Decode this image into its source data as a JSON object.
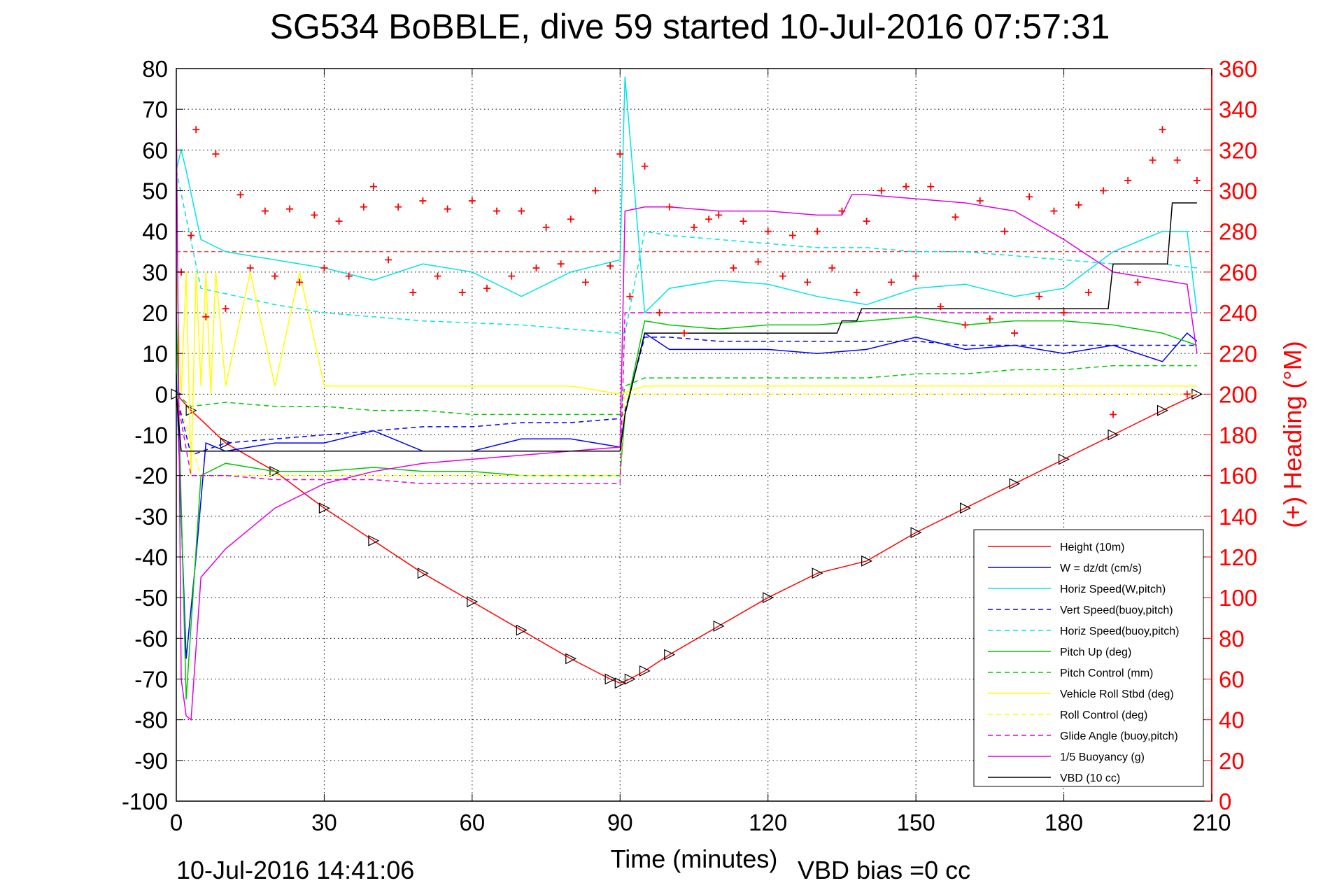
{
  "chart_data": {
    "type": "line",
    "title": "SG534 BoBBLE, dive 59 started 10-Jul-2016 07:57:31",
    "xlabel": "Time (minutes)",
    "ylabel_right": "(+) Heading (°M)",
    "footer_timestamp": "10-Jul-2016 14:41:06",
    "footer_note": "VBD bias =0 cc",
    "xlim": [
      0,
      210
    ],
    "ylim": [
      -100,
      80
    ],
    "ylim_right": [
      0,
      360
    ],
    "grid": true,
    "legend_position": "bottom-right",
    "x_ticks": [
      "0",
      "30",
      "60",
      "90",
      "120",
      "150",
      "180",
      "210"
    ],
    "y_ticks": [
      "80",
      "70",
      "60",
      "50",
      "40",
      "30",
      "20",
      "10",
      "0",
      "-10",
      "-20",
      "-30",
      "-40",
      "-50",
      "-60",
      "-70",
      "-80",
      "-90",
      "-100"
    ],
    "y_ticks_right": [
      "360",
      "340",
      "320",
      "300",
      "280",
      "260",
      "240",
      "220",
      "200",
      "180",
      "160",
      "140",
      "120",
      "100",
      "80",
      "60",
      "40",
      "20",
      "0"
    ],
    "colors": {
      "right_axis": "#ff0000",
      "grid": "#000000"
    },
    "series": [
      {
        "name": "Height (10m)",
        "color": "#ff0000",
        "style": "solid",
        "marker": "triangle",
        "x": [
          0,
          3,
          10,
          20,
          30,
          40,
          50,
          60,
          70,
          80,
          88,
          90,
          92,
          95,
          100,
          110,
          120,
          130,
          140,
          150,
          160,
          170,
          180,
          190,
          200,
          207
        ],
        "y": [
          0,
          -4,
          -12,
          -19,
          -28,
          -36,
          -44,
          -51,
          -58,
          -65,
          -70,
          -71,
          -70,
          -68,
          -64,
          -57,
          -50,
          -44,
          -41,
          -34,
          -28,
          -22,
          -16,
          -10,
          -4,
          0
        ]
      },
      {
        "name": "W = dz/dt (cm/s)",
        "color": "#0000ff",
        "style": "solid",
        "x": [
          0,
          1,
          2,
          4,
          6,
          10,
          20,
          30,
          40,
          50,
          60,
          70,
          80,
          90,
          91,
          95,
          100,
          110,
          120,
          130,
          140,
          150,
          160,
          170,
          180,
          190,
          200,
          205,
          207
        ],
        "y": [
          5,
          -30,
          -65,
          -40,
          -12,
          -14,
          -12,
          -12,
          -9,
          -14,
          -14,
          -11,
          -11,
          -13,
          -5,
          15,
          11,
          11,
          11,
          10,
          11,
          14,
          11,
          12,
          10,
          12,
          8,
          15,
          13
        ]
      },
      {
        "name": "Horiz Speed(W,pitch)",
        "color": "#00e5e5",
        "style": "solid",
        "x": [
          0,
          1,
          2,
          5,
          10,
          20,
          30,
          40,
          50,
          60,
          70,
          80,
          90,
          91,
          95,
          100,
          110,
          120,
          130,
          140,
          150,
          160,
          170,
          180,
          190,
          200,
          205,
          207
        ],
        "y": [
          55,
          60,
          55,
          38,
          35,
          33,
          31,
          28,
          32,
          30,
          24,
          30,
          33,
          78,
          20,
          26,
          28,
          27,
          24,
          22,
          26,
          27,
          24,
          26,
          35,
          40,
          40,
          20
        ]
      },
      {
        "name": "Vert Speed(buoy,pitch)",
        "color": "#0000ff",
        "style": "dashed",
        "x": [
          0,
          3,
          10,
          20,
          30,
          40,
          50,
          60,
          70,
          80,
          90,
          91,
          95,
          100,
          110,
          120,
          130,
          140,
          150,
          160,
          170,
          180,
          190,
          200,
          207
        ],
        "y": [
          0,
          -15,
          -12,
          -11,
          -10,
          -9,
          -8,
          -8,
          -7,
          -7,
          -6,
          -4,
          14,
          14,
          13,
          13,
          13,
          13,
          13,
          12,
          12,
          12,
          12,
          12,
          12
        ]
      },
      {
        "name": "Horiz Speed(buoy,pitch)",
        "color": "#00e5e5",
        "style": "dashed",
        "x": [
          0,
          5,
          20,
          30,
          40,
          50,
          60,
          70,
          80,
          90,
          91,
          95,
          100,
          110,
          120,
          130,
          140,
          150,
          160,
          170,
          180,
          190,
          200,
          207
        ],
        "y": [
          55,
          26,
          22,
          20,
          19,
          18,
          17.5,
          17,
          16,
          15,
          15,
          40,
          39,
          38,
          37,
          36,
          36,
          35,
          35,
          34,
          33,
          32,
          32,
          31
        ]
      },
      {
        "name": "Pitch Up (deg)",
        "color": "#00c800",
        "style": "solid",
        "x": [
          0,
          2,
          5,
          10,
          20,
          30,
          40,
          50,
          60,
          70,
          80,
          90,
          91,
          95,
          100,
          110,
          120,
          130,
          140,
          150,
          160,
          170,
          180,
          190,
          200,
          207
        ],
        "y": [
          20,
          -75,
          -20,
          -17,
          -19,
          -19,
          -18,
          -19,
          -19,
          -20,
          -20,
          -20,
          -5,
          18,
          17,
          16,
          17,
          17,
          18,
          19,
          17,
          18,
          18,
          17,
          15,
          12
        ]
      },
      {
        "name": "Pitch Control (mm)",
        "color": "#00c800",
        "style": "dashed",
        "x": [
          0,
          3,
          10,
          20,
          30,
          40,
          50,
          60,
          70,
          80,
          90,
          91,
          95,
          100,
          110,
          120,
          130,
          140,
          150,
          160,
          170,
          180,
          190,
          200,
          207
        ],
        "y": [
          0,
          -3,
          -2,
          -3,
          -3,
          -4,
          -4,
          -5,
          -5,
          -5,
          -5,
          2,
          4,
          4,
          4,
          4,
          4,
          4,
          5,
          5,
          6,
          6,
          7,
          7,
          7
        ]
      },
      {
        "name": "Vehicle Roll Stbd (deg)",
        "color": "#ffff00",
        "style": "solid",
        "x": [
          0,
          1,
          2,
          3,
          4,
          5,
          6,
          7,
          8,
          10,
          15,
          20,
          25,
          30,
          40,
          50,
          60,
          70,
          80,
          90,
          95,
          100,
          110,
          120,
          130,
          140,
          150,
          160,
          170,
          180,
          190,
          200,
          207
        ],
        "y": [
          30,
          0,
          30,
          -20,
          30,
          2,
          30,
          0,
          30,
          2,
          30,
          2,
          30,
          2,
          2,
          2,
          2,
          2,
          2,
          0,
          2,
          2,
          2,
          2,
          2,
          2,
          2,
          2,
          2,
          2,
          2,
          2,
          2
        ]
      },
      {
        "name": "Roll Control (deg)",
        "color": "#ffff00",
        "style": "dashed",
        "x": [
          0,
          5,
          10,
          20,
          30,
          40,
          50,
          60,
          70,
          80,
          90,
          91,
          95,
          100,
          110,
          120,
          130,
          140,
          150,
          160,
          170,
          180,
          190,
          200,
          207
        ],
        "y": [
          0,
          -20,
          -20,
          -20,
          -20,
          -20,
          -20,
          -20,
          -20,
          -20,
          -20,
          0,
          0,
          0,
          0,
          0,
          0,
          0,
          0,
          0,
          0,
          0,
          0,
          0,
          0
        ]
      },
      {
        "name": "Glide Angle (buoy,pitch)",
        "color": "#e000e0",
        "style": "dashed",
        "x": [
          0,
          3,
          10,
          20,
          30,
          40,
          50,
          60,
          70,
          80,
          90,
          91,
          95,
          100,
          110,
          120,
          130,
          140,
          150,
          160,
          170,
          180,
          190,
          200,
          207
        ],
        "y": [
          0,
          -20,
          -20,
          -21,
          -21,
          -21,
          -22,
          -22,
          -22,
          -22,
          -22,
          20,
          20,
          20,
          20,
          20,
          20,
          20,
          20,
          20,
          20,
          20,
          20,
          20,
          20
        ]
      },
      {
        "name": "1/5 Buoyancy (g)",
        "color": "#e000e0",
        "style": "solid",
        "x": [
          0,
          1,
          2,
          3,
          5,
          10,
          15,
          20,
          30,
          40,
          50,
          60,
          70,
          80,
          90,
          91,
          95,
          100,
          110,
          120,
          130,
          135,
          137,
          140,
          150,
          160,
          170,
          180,
          190,
          200,
          205,
          207
        ],
        "y": [
          70,
          -70,
          -79,
          -80,
          -45,
          -38,
          -33,
          -28,
          -22,
          -19,
          -17,
          -16,
          -15,
          -14,
          -13,
          45,
          46,
          46,
          45,
          45,
          44,
          44,
          49,
          49,
          48,
          47,
          45,
          38,
          30,
          28,
          27,
          10
        ]
      },
      {
        "name": "VBD (10 cc)",
        "color": "#000000",
        "style": "solid",
        "x": [
          0,
          1,
          2,
          40,
          90,
          91,
          95,
          134,
          135,
          138,
          139,
          189,
          190,
          201,
          202,
          207
        ],
        "y": [
          0,
          -14,
          -14,
          -14,
          -14,
          -5,
          15,
          15,
          18,
          18,
          21,
          21,
          32,
          32,
          47,
          47
        ]
      },
      {
        "name": "Heading",
        "color": "#ff0000",
        "style": "markers",
        "marker": "plus",
        "axis": "right",
        "x": [
          1,
          3,
          4,
          6,
          8,
          10,
          13,
          15,
          18,
          20,
          23,
          25,
          28,
          30,
          33,
          35,
          38,
          40,
          43,
          45,
          48,
          50,
          53,
          55,
          58,
          60,
          63,
          65,
          68,
          70,
          73,
          75,
          78,
          80,
          83,
          85,
          88,
          90,
          92,
          95,
          98,
          100,
          103,
          105,
          108,
          110,
          113,
          115,
          118,
          120,
          123,
          125,
          128,
          130,
          133,
          135,
          138,
          140,
          143,
          145,
          148,
          150,
          153,
          155,
          158,
          160,
          163,
          165,
          168,
          170,
          173,
          175,
          178,
          180,
          183,
          185,
          188,
          190,
          193,
          195,
          198,
          200,
          203,
          205,
          207
        ],
        "y": [
          260,
          278,
          330,
          238,
          318,
          242,
          298,
          262,
          290,
          258,
          291,
          255,
          288,
          262,
          285,
          258,
          292,
          302,
          266,
          292,
          250,
          295,
          258,
          291,
          250,
          295,
          252,
          290,
          258,
          290,
          262,
          282,
          264,
          286,
          255,
          300,
          263,
          318,
          248,
          312,
          240,
          292,
          230,
          282,
          286,
          288,
          262,
          285,
          265,
          280,
          258,
          278,
          255,
          280,
          262,
          290,
          250,
          285,
          300,
          255,
          302,
          258,
          302,
          243,
          287,
          234,
          295,
          237,
          280,
          230,
          297,
          248,
          290,
          240,
          293,
          250,
          300,
          190,
          305,
          255,
          315,
          330,
          315,
          200,
          305
        ]
      }
    ]
  },
  "legend": {
    "entries": [
      "Height (10m)",
      "W = dz/dt (cm/s)",
      "Horiz Speed(W,pitch)",
      "Vert Speed(buoy,pitch)",
      "Horiz Speed(buoy,pitch)",
      "Pitch Up (deg)",
      "Pitch Control (mm)",
      "Vehicle Roll Stbd (deg)",
      "Roll Control (deg)",
      "Glide Angle (buoy,pitch)",
      "1/5 Buoyancy (g)",
      "VBD (10 cc)"
    ]
  },
  "reference_line": {
    "axis": "right",
    "value": 270,
    "color": "#ff0000"
  }
}
